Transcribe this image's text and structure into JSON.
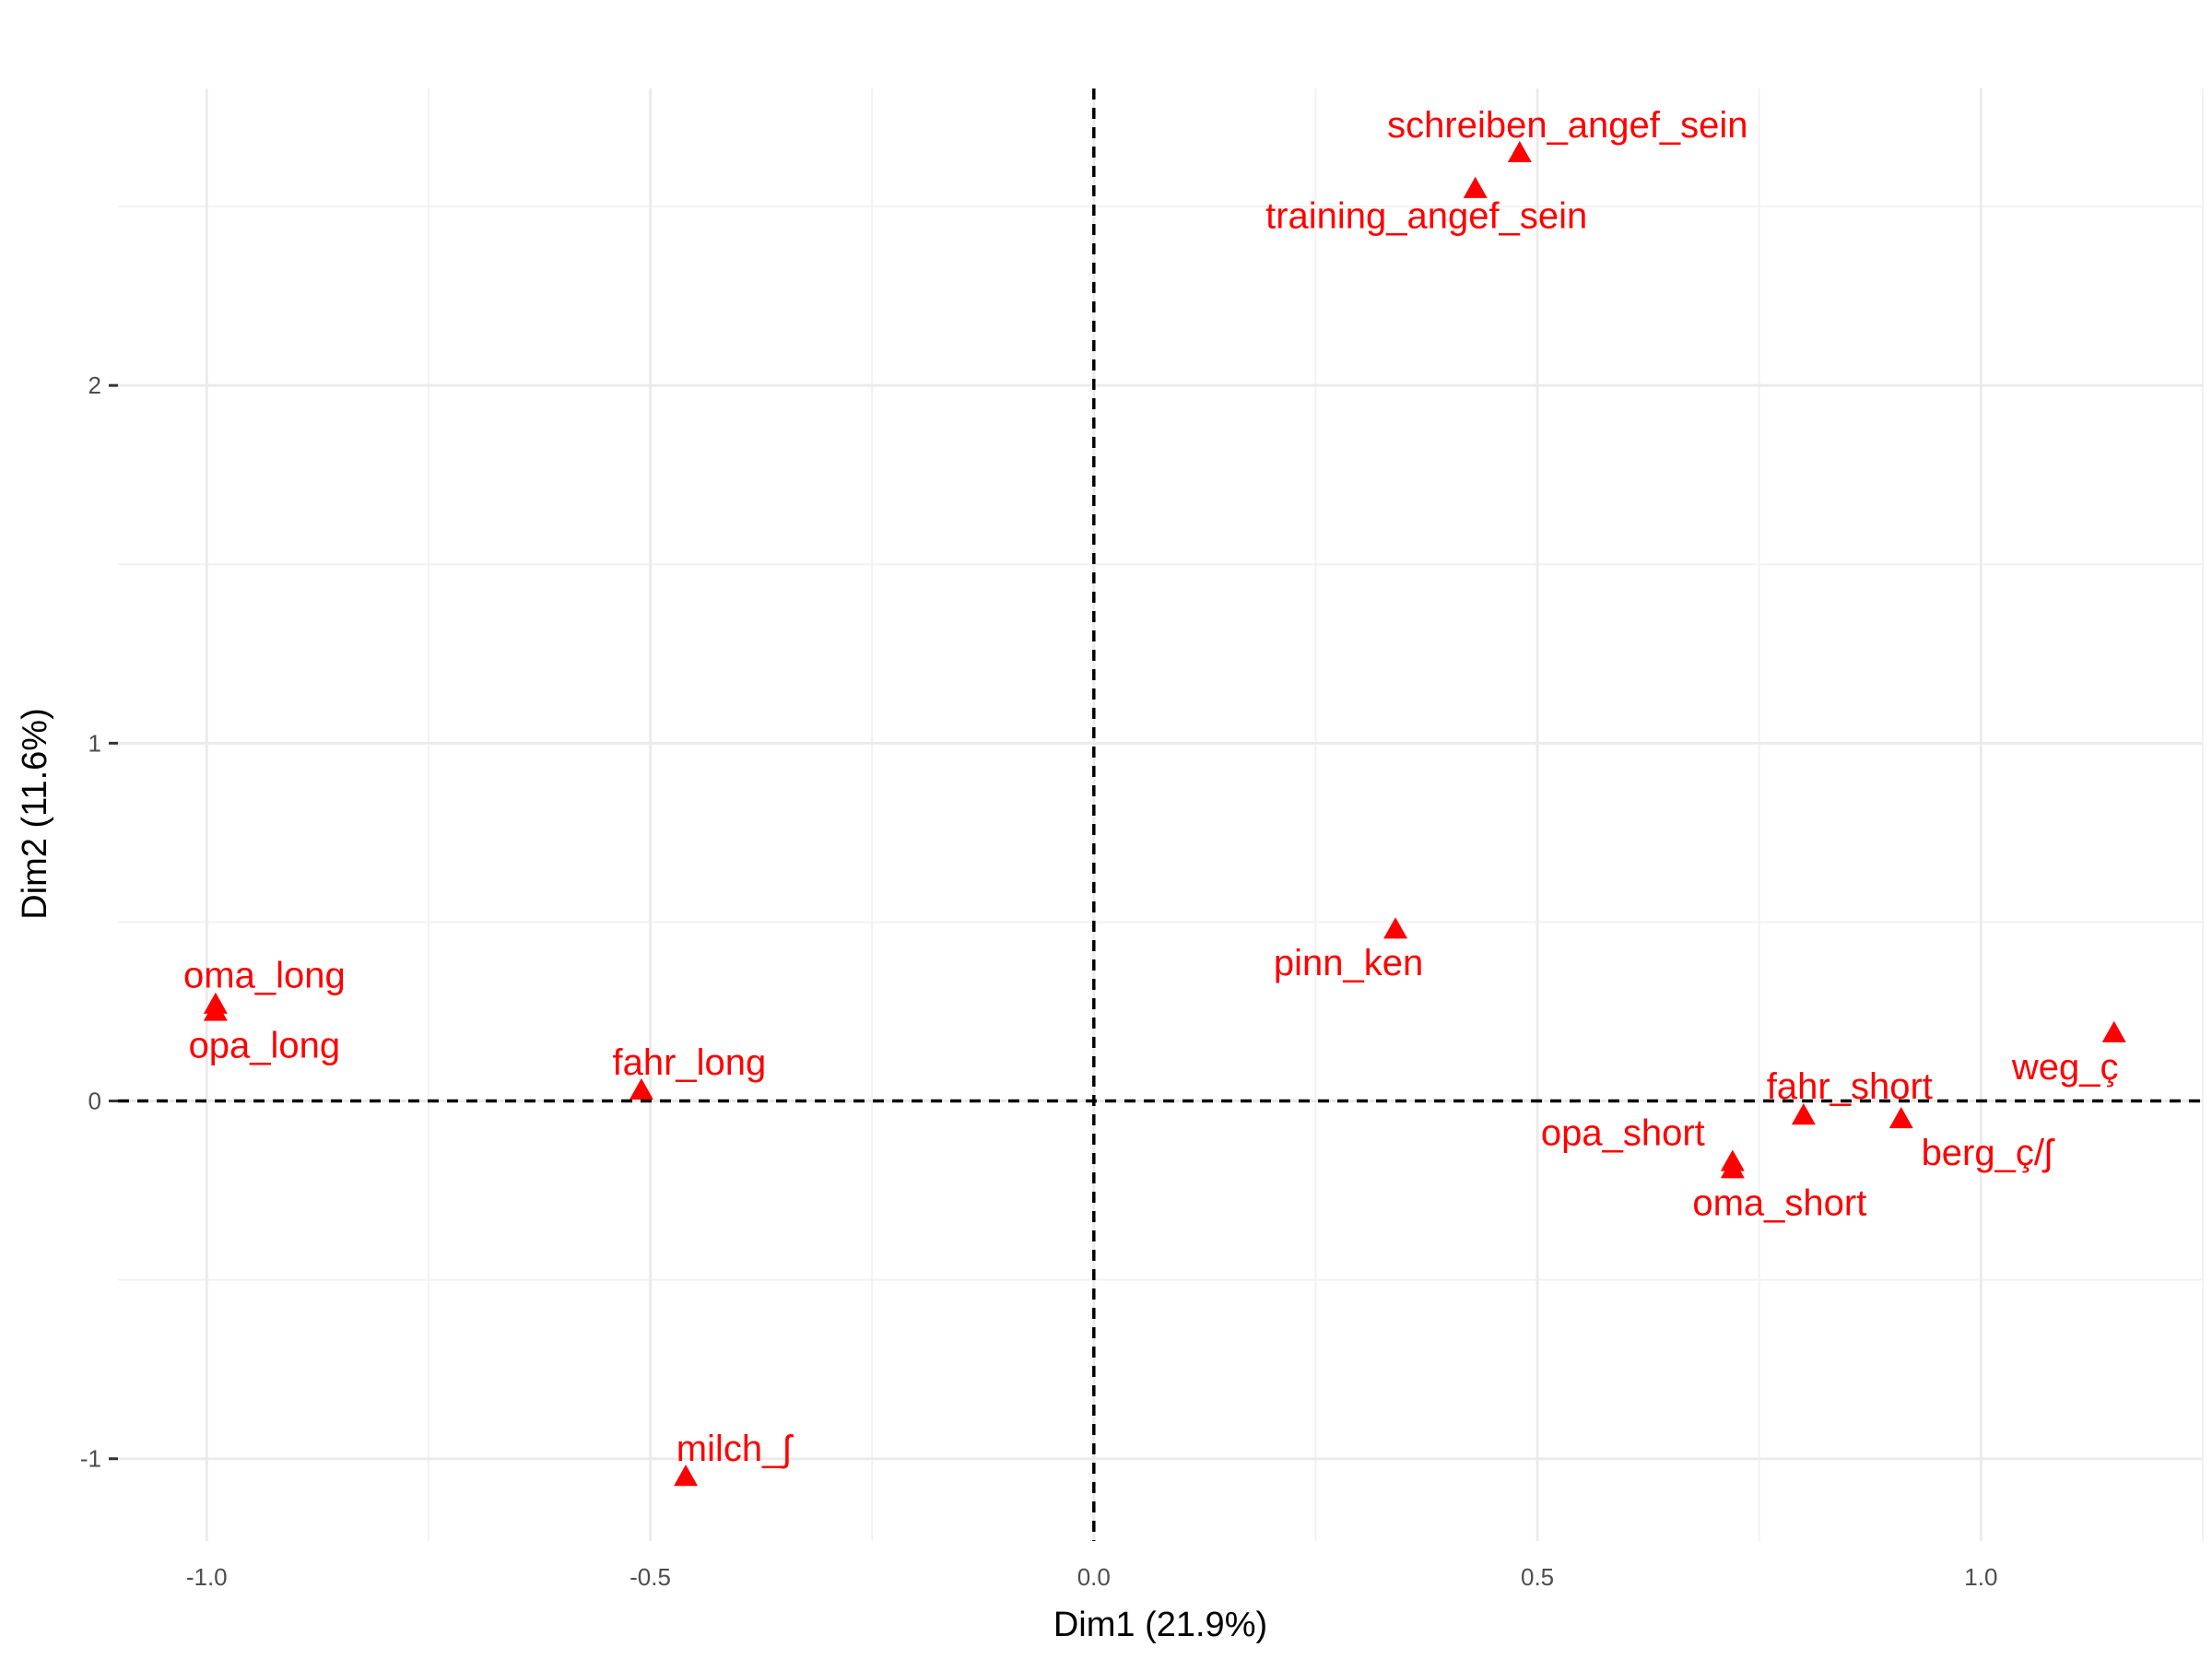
{
  "chart_data": {
    "type": "scatter",
    "xlabel": "Dim1 (21.9%)",
    "ylabel": "Dim2 (11.6%)",
    "xlim": [
      -1.1,
      1.25
    ],
    "ylim": [
      -1.23,
      2.83
    ],
    "x_ticks": [
      -1.0,
      -0.5,
      0.0,
      0.5,
      1.0
    ],
    "x_tick_labels": [
      "-1.0",
      "-0.5",
      "0.0",
      "0.5",
      "1.0"
    ],
    "y_ticks": [
      -1,
      0,
      1,
      2
    ],
    "y_tick_labels": [
      "-1",
      "0",
      "1",
      "2"
    ],
    "grid": true,
    "reference_lines": {
      "x": 0,
      "y": 0,
      "style": "dashed"
    },
    "marker": "triangle",
    "point_color": "#FF0000",
    "points": [
      {
        "label": "schreiben_angef_sein",
        "x": 0.48,
        "y": 2.65
      },
      {
        "label": "training_angef_sein",
        "x": 0.43,
        "y": 2.55
      },
      {
        "label": "pinn_ken",
        "x": 0.34,
        "y": 0.48
      },
      {
        "label": "oma_long",
        "x": -0.99,
        "y": 0.27
      },
      {
        "label": "opa_long",
        "x": -0.99,
        "y": 0.25
      },
      {
        "label": "fahr_long",
        "x": -0.51,
        "y": 0.03
      },
      {
        "label": "milch_ʃ",
        "x": -0.46,
        "y": -1.05
      },
      {
        "label": "weg_ç",
        "x": 1.15,
        "y": 0.19
      },
      {
        "label": "fahr_short",
        "x": 0.8,
        "y": -0.04
      },
      {
        "label": "berg_ç/ʃ",
        "x": 0.91,
        "y": -0.05
      },
      {
        "label": "opa_short",
        "x": 0.72,
        "y": -0.17
      },
      {
        "label": "oma_short",
        "x": 0.72,
        "y": -0.19
      }
    ]
  }
}
